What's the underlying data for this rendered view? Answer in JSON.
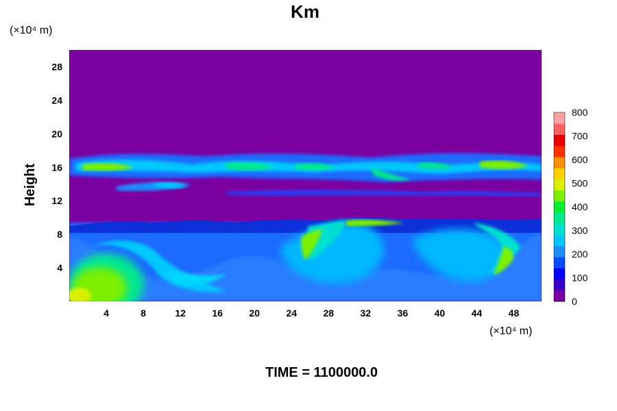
{
  "chart_data": {
    "type": "heatmap",
    "title": "Km",
    "ylabel": "Height",
    "x_unit": "(×10⁴ m)",
    "y_unit": "(×10⁴ m)",
    "xlim": [
      0,
      51
    ],
    "ylim": [
      0,
      30
    ],
    "x_ticks": [
      4,
      8,
      12,
      16,
      20,
      24,
      28,
      32,
      36,
      40,
      44,
      48
    ],
    "y_ticks": [
      4,
      8,
      12,
      16,
      20,
      24,
      28
    ],
    "colorbar": {
      "min": 0,
      "max": 800,
      "ticks": [
        0,
        100,
        200,
        300,
        400,
        500,
        600,
        700,
        800
      ],
      "colors": [
        "#7b00a0",
        "#3c00c8",
        "#0000ff",
        "#0b4aff",
        "#1f8cff",
        "#00c8ff",
        "#00e0d0",
        "#00e890",
        "#00ee30",
        "#7cf000",
        "#d8f000",
        "#ffd000",
        "#ff9000",
        "#ff3000",
        "#e80000",
        "#ff6060",
        "#ffa0a0"
      ]
    },
    "footer": "TIME = 1100000.0",
    "regions": [
      {
        "kind": "background",
        "value": 0
      },
      {
        "kind": "band",
        "y_range": [
          14.5,
          17.5
        ],
        "value": 250
      },
      {
        "kind": "band",
        "y_range": [
          12.8,
          13.8
        ],
        "value": 180
      },
      {
        "kind": "band",
        "y_range": [
          0,
          9.8
        ],
        "value": 200
      },
      {
        "kind": "blob",
        "center": [
          3,
          1.5
        ],
        "value": 420
      },
      {
        "kind": "blob",
        "center": [
          27.5,
          6.5
        ],
        "value": 420
      },
      {
        "kind": "blob",
        "center": [
          46,
          5
        ],
        "value": 400
      }
    ]
  }
}
